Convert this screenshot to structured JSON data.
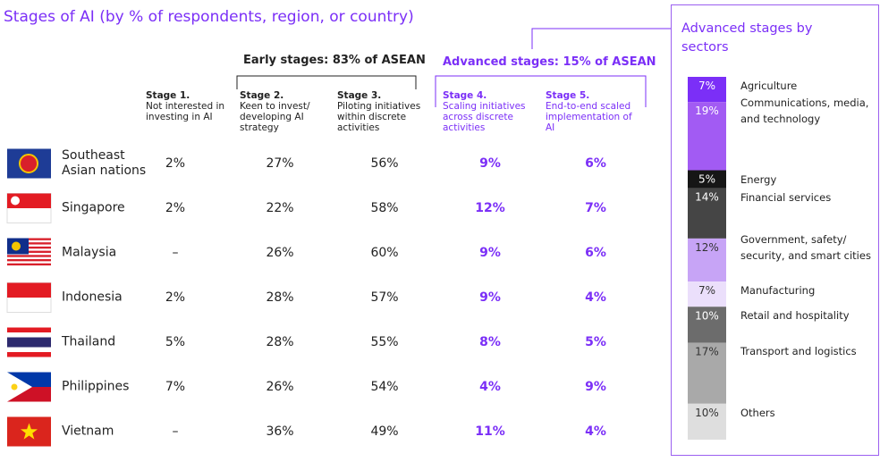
{
  "header": {
    "title": "Stages of AI (by % of respondents, region, or country)",
    "early": "Early stages: 83% of ASEAN",
    "advanced": "Advanced stages: 15% of ASEAN"
  },
  "table": {
    "columns": [
      {
        "title": "Stage 1.",
        "desc": "Not interested in investing in AI"
      },
      {
        "title": "Stage 2.",
        "desc": "Keen to invest/ developing AI strategy"
      },
      {
        "title": "Stage 3.",
        "desc": "Piloting initiatives within discrete activities"
      },
      {
        "title": "Stage 4.",
        "desc": "Scaling initiatives across discrete activities"
      },
      {
        "title": "Stage 5.",
        "desc": "End-to-end scaled implementation of AI"
      }
    ],
    "rows": [
      [
        "Southeast Asian nations",
        "2%",
        "27%",
        "56%",
        "9%",
        "6%"
      ],
      [
        "Singapore",
        "2%",
        "22%",
        "58%",
        "12%",
        "7%"
      ],
      [
        "Malaysia",
        "–",
        "26%",
        "60%",
        "9%",
        "6%"
      ],
      [
        "Indonesia",
        "2%",
        "28%",
        "57%",
        "9%",
        "4%"
      ],
      [
        "Thailand",
        "5%",
        "28%",
        "55%",
        "8%",
        "5%"
      ],
      [
        "Philippines",
        "7%",
        "26%",
        "54%",
        "4%",
        "9%"
      ],
      [
        "Vietnam",
        "–",
        "36%",
        "49%",
        "11%",
        "4%"
      ]
    ]
  },
  "sectors": {
    "title": "Advanced stages by sectors",
    "items": [
      {
        "name": "Agriculture",
        "value": 7,
        "value_label": "7%",
        "color": "#7b2ff7"
      },
      {
        "name": "Communications, media, and technology",
        "value": 19,
        "value_label": "19%",
        "color": "#a25bf3"
      },
      {
        "name": "Energy",
        "value": 5,
        "value_label": "5%",
        "color": "#161616"
      },
      {
        "name": "Financial services",
        "value": 14,
        "value_label": "14%",
        "color": "#454545"
      },
      {
        "name": "Government, safety/ security, and smart cities",
        "value": 12,
        "value_label": "12%",
        "color": "#c7a4f6"
      },
      {
        "name": "Manufacturing",
        "value": 7,
        "value_label": "7%",
        "color": "#ebdffb"
      },
      {
        "name": "Retail and hospitality",
        "value": 10,
        "value_label": "10%",
        "color": "#6c6c6c"
      },
      {
        "name": "Transport and logistics",
        "value": 17,
        "value_label": "17%",
        "color": "#a9a9a9"
      },
      {
        "name": "Others",
        "value": 10,
        "value_label": "10%",
        "color": "#dedede"
      }
    ]
  }
}
